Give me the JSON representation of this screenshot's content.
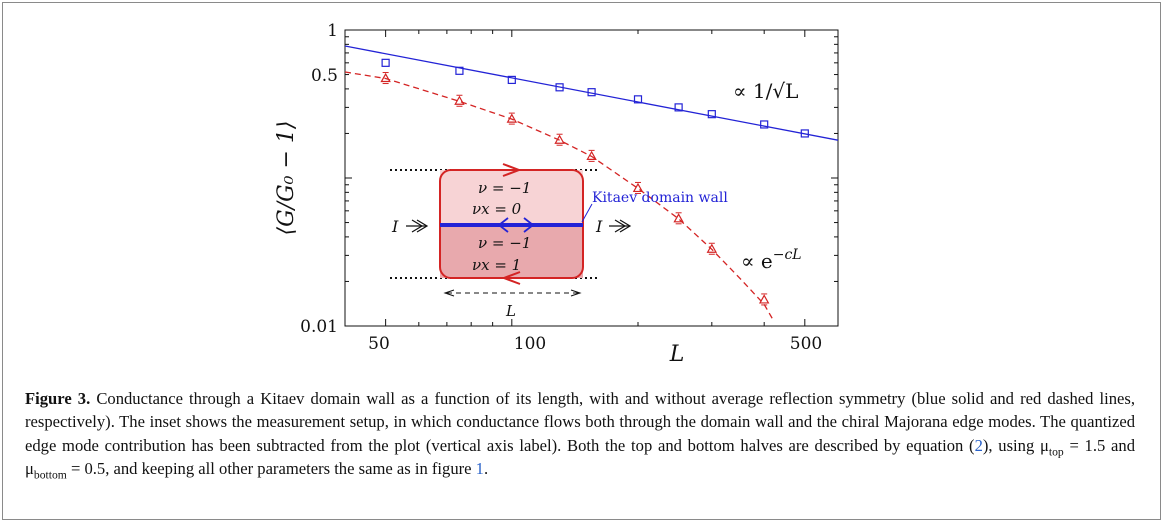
{
  "figure": {
    "y_axis_label": "⟨G/G₀ − 1⟩",
    "x_axis_label": "L",
    "x_tick_labels": [
      "50",
      "100",
      "500"
    ],
    "y_tick_labels": [
      "1",
      "0.5",
      "0.01"
    ],
    "sqrt_annotation": "∝ 1/√L",
    "exp_annotation": "∝ e",
    "exp_annotation_power": "−cL",
    "inset": {
      "top_nu": "ν = −1",
      "top_nu_x": "νx = 0",
      "bottom_nu": "ν = −1",
      "bottom_nu_x": "νx = 1",
      "current_left": "I",
      "current_right": "I",
      "length_label": "L",
      "domain_wall_label": "Kitaev domain wall"
    }
  },
  "caption": {
    "label": "Figure 3.",
    "text1": " Conductance through a Kitaev domain wall as a function of its length, with and without average reflection symmetry (blue solid and red dashed lines, respectively). The inset shows the measurement setup, in which conductance flows both through the domain wall and the chiral Majorana edge modes. The quantized edge mode contribution has been subtracted from the plot (vertical axis label). Both the top and bottom halves are described by equation (",
    "eq_ref": "2",
    "text2": "), using μ",
    "sub_top": "top",
    "text3": " = 1.5 and μ",
    "sub_bottom": "bottom",
    "text4": " = 0.5, and keeping all other parameters the same as in figure ",
    "fig_ref": "1",
    "text5": "."
  },
  "chart_data": {
    "type": "scatter",
    "x_scale": "log",
    "y_scale": "log",
    "xlim": [
      40,
      600
    ],
    "ylim": [
      0.01,
      1
    ],
    "x_ticks": [
      50,
      100,
      500
    ],
    "y_tick_labels_at": [
      1,
      0.5,
      0.01
    ],
    "grid": false,
    "series": [
      {
        "marker": "square",
        "color": "#2323d6",
        "x": [
          50,
          75,
          100,
          130,
          155,
          200,
          250,
          300,
          400,
          500
        ],
        "y": [
          0.6,
          0.53,
          0.46,
          0.41,
          0.38,
          0.34,
          0.3,
          0.27,
          0.23,
          0.2
        ],
        "fit": {
          "style": "solid",
          "x": [
            40,
            600
          ],
          "y": [
            0.78,
            0.18
          ]
        }
      },
      {
        "marker": "triangle",
        "color": "#d42424",
        "x": [
          50,
          75,
          100,
          130,
          155,
          200,
          250,
          300,
          400
        ],
        "y": [
          0.47,
          0.33,
          0.25,
          0.18,
          0.14,
          0.085,
          0.053,
          0.033,
          0.015
        ],
        "fit": {
          "style": "dashed",
          "x": [
            40,
            50,
            75,
            100,
            130,
            155,
            200,
            250,
            300,
            350,
            400,
            420
          ],
          "y": [
            0.52,
            0.47,
            0.33,
            0.25,
            0.18,
            0.14,
            0.085,
            0.053,
            0.033,
            0.021,
            0.014,
            0.011
          ]
        }
      }
    ]
  },
  "colors": {
    "blue": "#2323d6",
    "red": "#d42424",
    "inset_top_fill": "#f7d3d5",
    "inset_bottom_fill": "#e8a9ad",
    "link": "#2a62c9"
  }
}
